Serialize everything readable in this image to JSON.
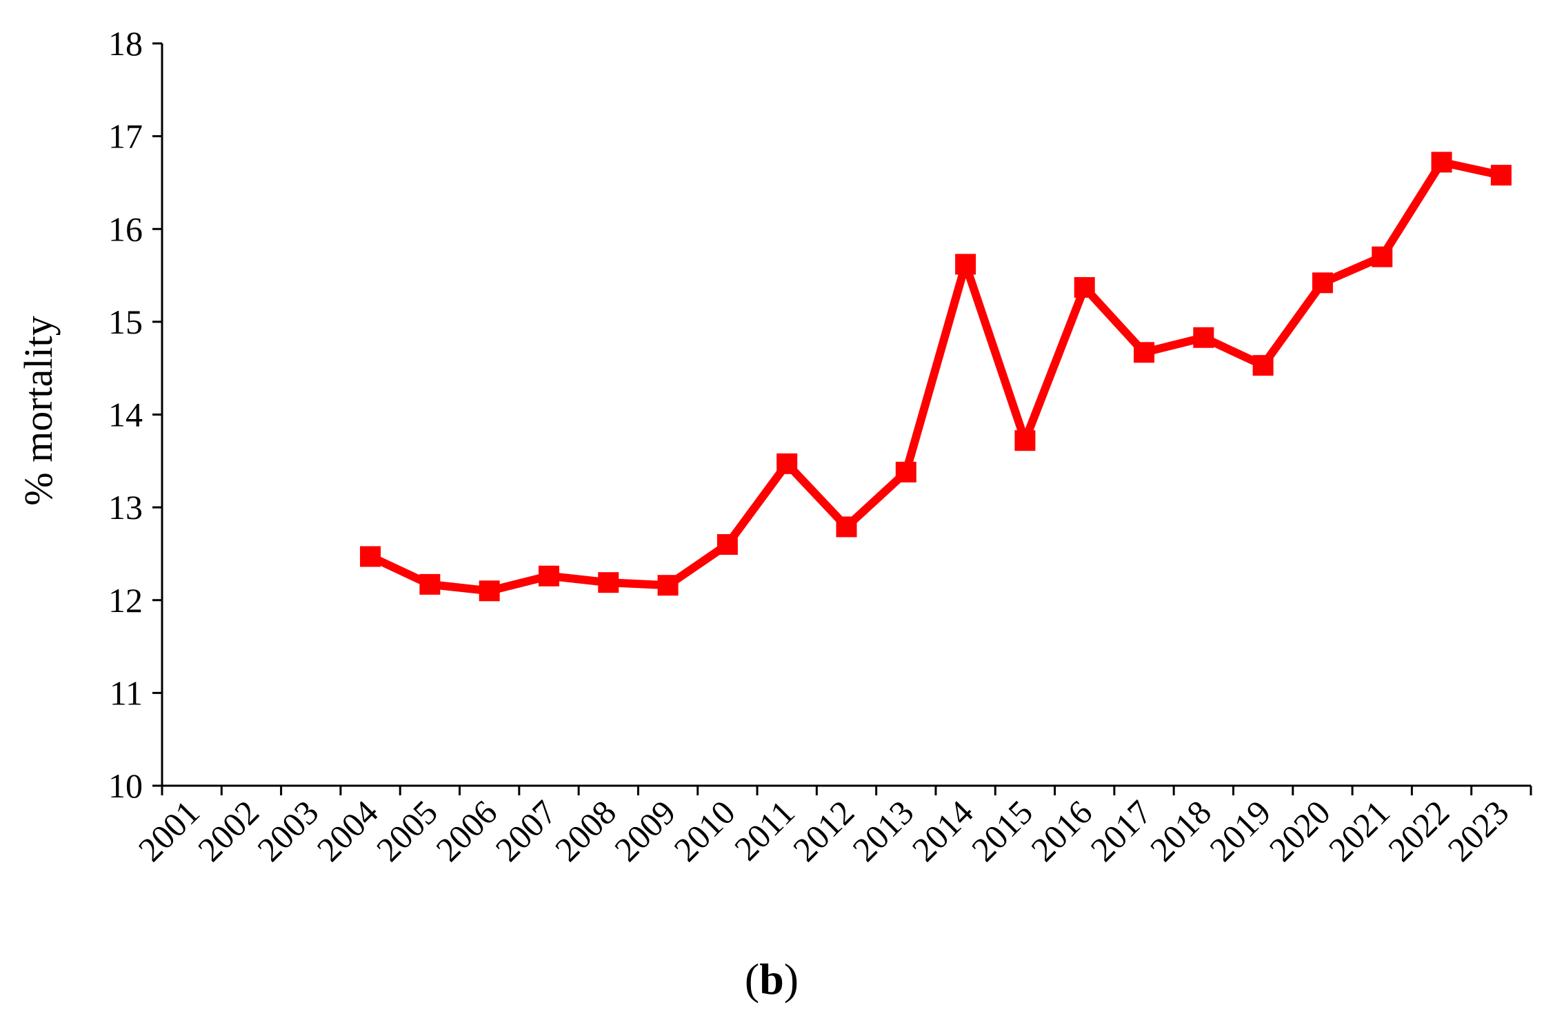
{
  "chart_data": {
    "type": "line",
    "title": "",
    "xlabel": "",
    "ylabel": "% mortality",
    "categories": [
      "2001",
      "2002",
      "2003",
      "2004",
      "2005",
      "2006",
      "2007",
      "2008",
      "2009",
      "2010",
      "2011",
      "2012",
      "2013",
      "2014",
      "2015",
      "2016",
      "2017",
      "2018",
      "2019",
      "2020",
      "2021",
      "2022",
      "2023"
    ],
    "y_ticks": [
      "10",
      "11",
      "12",
      "13",
      "14",
      "15",
      "16",
      "17",
      "18"
    ],
    "ylim": [
      10,
      18
    ],
    "grid": false,
    "legend": "none",
    "series": [
      {
        "color": "#ff0000",
        "marker": "square",
        "values": [
          null,
          null,
          null,
          12.47,
          12.17,
          12.1,
          12.26,
          12.19,
          12.16,
          12.6,
          13.47,
          12.79,
          13.38,
          15.62,
          13.72,
          15.37,
          14.67,
          14.83,
          14.53,
          15.42,
          15.7,
          16.72,
          16.58
        ]
      }
    ]
  },
  "panel_label": {
    "open": "(",
    "letter": "b",
    "close": ")"
  }
}
